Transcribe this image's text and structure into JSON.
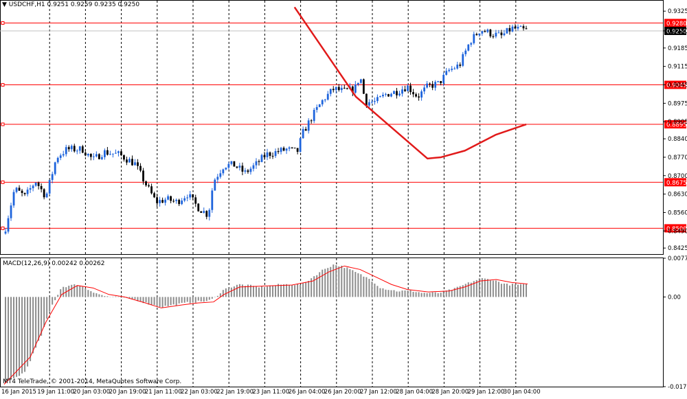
{
  "header": {
    "symbol_label": "USDCHF,H1",
    "ohlc_text": "0.9251 0.9259 0.9235 0.9250"
  },
  "footer": {
    "copyright": "MT4 TeleTrade, © 2001-2014, MetaQuotes Software Corp."
  },
  "colors": {
    "bull": "#1e64dc",
    "bear": "#000000",
    "level": "#ff0000",
    "curve": "#e11a1a",
    "macd_hist": "#8c8c8c",
    "macd_signal": "#ff0000",
    "grid": "#000000",
    "bid_line": "#c0c0c0"
  },
  "chart_data": [
    {
      "type": "candlestick",
      "title": "USDCHF,H1",
      "ylim": [
        0.8402,
        0.9336
      ],
      "y_ticks": [
        "0.9325",
        "0.9250",
        "0.9185",
        "0.9115",
        "0.9045",
        "0.8975",
        "0.8905",
        "0.8840",
        "0.8770",
        "0.8700",
        "0.8630",
        "0.8560",
        "0.8490",
        "0.8425"
      ],
      "x_labels": [
        "16 Jan 2015",
        "19 Jan 11:00",
        "20 Jan 03:00",
        "20 Jan 19:00",
        "21 Jan 11:00",
        "22 Jan 03:00",
        "22 Jan 19:00",
        "23 Jan 11:00",
        "26 Jan 04:00",
        "26 Jan 20:00",
        "27 Jan 12:00",
        "28 Jan 04:00",
        "28 Jan 20:00",
        "29 Jan 12:00",
        "30 Jan 04:00"
      ],
      "current_price": "0.9250",
      "horizontal_levels": [
        {
          "value": 0.928,
          "label": "0.9280"
        },
        {
          "value": 0.9045,
          "label": "0.9045"
        },
        {
          "value": 0.8895,
          "label": "0.8895"
        },
        {
          "value": 0.8675,
          "label": "0.8675"
        },
        {
          "value": 0.85,
          "label": "0.8500"
        }
      ],
      "trend_curve": [
        {
          "x": 0.32,
          "y": 0.934
        },
        {
          "x": 0.5,
          "y": 0.9
        },
        {
          "x": 0.71,
          "y": 0.8765
        },
        {
          "x": 0.75,
          "y": 0.877
        },
        {
          "x": 0.82,
          "y": 0.8795
        },
        {
          "x": 0.91,
          "y": 0.8855
        },
        {
          "x": 1.0,
          "y": 0.8895
        }
      ],
      "price_path": [
        [
          0.0,
          0.848
        ],
        [
          0.02,
          0.865
        ],
        [
          0.04,
          0.862
        ],
        [
          0.06,
          0.868
        ],
        [
          0.08,
          0.862
        ],
        [
          0.1,
          0.877
        ],
        [
          0.12,
          0.88
        ],
        [
          0.15,
          0.88
        ],
        [
          0.17,
          0.876
        ],
        [
          0.19,
          0.879
        ],
        [
          0.22,
          0.878
        ],
        [
          0.25,
          0.8745
        ],
        [
          0.27,
          0.867
        ],
        [
          0.29,
          0.86
        ],
        [
          0.31,
          0.861
        ],
        [
          0.33,
          0.86
        ],
        [
          0.35,
          0.863
        ],
        [
          0.37,
          0.858
        ],
        [
          0.39,
          0.855
        ],
        [
          0.4,
          0.868
        ],
        [
          0.42,
          0.874
        ],
        [
          0.44,
          0.874
        ],
        [
          0.46,
          0.871
        ],
        [
          0.48,
          0.874
        ],
        [
          0.5,
          0.878
        ],
        [
          0.52,
          0.879
        ],
        [
          0.54,
          0.88
        ],
        [
          0.56,
          0.879
        ],
        [
          0.57,
          0.886
        ],
        [
          0.59,
          0.893
        ],
        [
          0.61,
          0.899
        ],
        [
          0.63,
          0.903
        ],
        [
          0.65,
          0.902
        ],
        [
          0.67,
          0.903
        ],
        [
          0.68,
          0.908
        ],
        [
          0.69,
          0.898
        ],
        [
          0.71,
          0.898
        ],
        [
          0.73,
          0.901
        ],
        [
          0.75,
          0.902
        ],
        [
          0.77,
          0.904
        ],
        [
          0.79,
          0.9
        ],
        [
          0.81,
          0.904
        ],
        [
          0.83,
          0.905
        ],
        [
          0.85,
          0.91
        ],
        [
          0.87,
          0.912
        ],
        [
          0.89,
          0.921
        ],
        [
          0.91,
          0.9255
        ],
        [
          0.93,
          0.924
        ],
        [
          0.95,
          0.923
        ],
        [
          0.97,
          0.926
        ],
        [
          1.0,
          0.925
        ]
      ]
    },
    {
      "type": "bar",
      "title": "MACD(12,26,9) 0.00242 0.00262",
      "ylim": [
        -0.01796,
        0.00776
      ],
      "y_ticks": [
        "0.00776",
        "0.00",
        "-0.01796"
      ],
      "hist_path": [
        [
          0.0,
          -0.0175
        ],
        [
          0.04,
          -0.015
        ],
        [
          0.07,
          -0.008
        ],
        [
          0.09,
          -0.002
        ],
        [
          0.11,
          0.002
        ],
        [
          0.14,
          0.0025
        ],
        [
          0.16,
          0.0015
        ],
        [
          0.19,
          0.0002
        ],
        [
          0.21,
          0.0
        ],
        [
          0.25,
          -0.0005
        ],
        [
          0.28,
          -0.0015
        ],
        [
          0.3,
          -0.002
        ],
        [
          0.33,
          -0.0015
        ],
        [
          0.36,
          -0.001
        ],
        [
          0.39,
          -0.0008
        ],
        [
          0.4,
          -0.0003
        ],
        [
          0.42,
          0.0015
        ],
        [
          0.45,
          0.0025
        ],
        [
          0.49,
          0.002
        ],
        [
          0.53,
          0.0025
        ],
        [
          0.57,
          0.0025
        ],
        [
          0.59,
          0.004
        ],
        [
          0.61,
          0.0055
        ],
        [
          0.63,
          0.0065
        ],
        [
          0.65,
          0.006
        ],
        [
          0.67,
          0.005
        ],
        [
          0.7,
          0.0035
        ],
        [
          0.72,
          0.0018
        ],
        [
          0.75,
          0.0012
        ],
        [
          0.78,
          0.0012
        ],
        [
          0.8,
          0.0008
        ],
        [
          0.83,
          0.0008
        ],
        [
          0.86,
          0.0016
        ],
        [
          0.88,
          0.0025
        ],
        [
          0.91,
          0.0037
        ],
        [
          0.93,
          0.0035
        ],
        [
          0.96,
          0.0025
        ],
        [
          1.0,
          0.0024
        ]
      ],
      "signal_path": [
        [
          0.0,
          -0.0175
        ],
        [
          0.05,
          -0.012
        ],
        [
          0.08,
          -0.005
        ],
        [
          0.11,
          0.0005
        ],
        [
          0.14,
          0.0023
        ],
        [
          0.17,
          0.0018
        ],
        [
          0.2,
          0.0005
        ],
        [
          0.23,
          0.0
        ],
        [
          0.27,
          -0.0012
        ],
        [
          0.3,
          -0.0022
        ],
        [
          0.34,
          -0.0016
        ],
        [
          0.37,
          -0.0012
        ],
        [
          0.4,
          -0.001
        ],
        [
          0.42,
          0.0005
        ],
        [
          0.45,
          0.002
        ],
        [
          0.5,
          0.0022
        ],
        [
          0.55,
          0.0024
        ],
        [
          0.59,
          0.0032
        ],
        [
          0.62,
          0.005
        ],
        [
          0.65,
          0.0062
        ],
        [
          0.68,
          0.0055
        ],
        [
          0.71,
          0.004
        ],
        [
          0.74,
          0.0025
        ],
        [
          0.77,
          0.0015
        ],
        [
          0.81,
          0.001
        ],
        [
          0.85,
          0.0012
        ],
        [
          0.88,
          0.002
        ],
        [
          0.91,
          0.0032
        ],
        [
          0.94,
          0.0035
        ],
        [
          0.97,
          0.0029
        ],
        [
          1.0,
          0.0026
        ]
      ]
    }
  ]
}
